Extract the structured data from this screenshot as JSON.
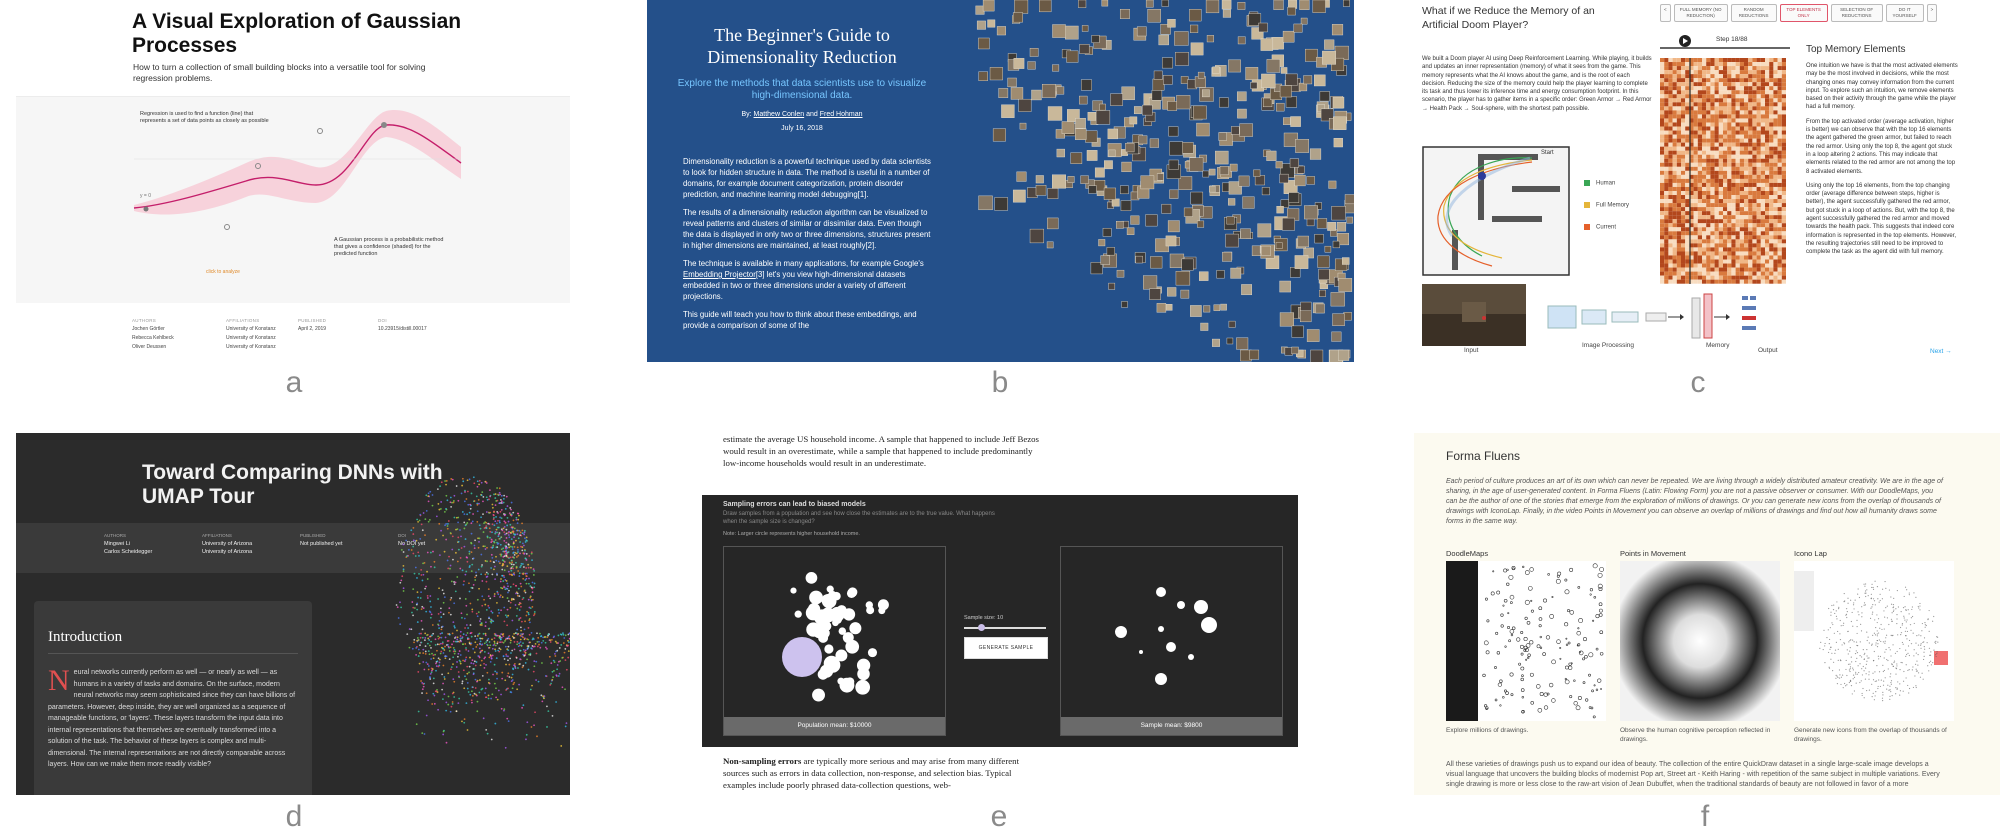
{
  "panel_labels": [
    "a",
    "b",
    "c",
    "d",
    "e",
    "f"
  ],
  "a": {
    "title": "A Visual Exploration of Gaussian Processes",
    "subtitle": "How to turn a collection of small building blocks into a versatile tool for solving regression problems.",
    "regression_note": "Regression is used to find a function (line) that represents a set of data points as closely as possible",
    "gp_note": "A Gaussian process is a probabilistic method that gives a confidence (shaded) for the predicted function",
    "y_label": "y = 0",
    "click_hint": "click to analyze",
    "meta": {
      "authors_h": "AUTHORS",
      "authors": [
        "Jochen Görtler",
        "Rebecca Kehlbeck",
        "Oliver Deussen"
      ],
      "affil_h": "AFFILIATIONS",
      "affil": [
        "University of Konstanz",
        "University of Konstanz",
        "University of Konstanz"
      ],
      "pub_h": "PUBLISHED",
      "pub": "April 2, 2019",
      "doi_h": "DOI",
      "doi": "10.23915/distill.00017"
    }
  },
  "b": {
    "title": "The Beginner's Guide to Dimensionality Reduction",
    "subtitle": "Explore the methods that data scientists use to visualize high-dimensional data.",
    "by_prefix": "By: ",
    "author1": "Matthew Conlen",
    "and": " and ",
    "author2": "Fred Hohman",
    "date": "July 16, 2018",
    "p1": "Dimensionality reduction is a powerful technique used by data scientists to look for hidden structure in data. The method is useful in a number of domains, for example document categorization, protein disorder prediction, and machine learning model debugging[1].",
    "p2": "The results of a dimensionality reduction algorithm can be visualized to reveal patterns and clusters of similar or dissimilar data. Even though the data is displayed in only two or three dimensions, structures present in higher dimensions are maintained, at least roughly[2].",
    "p3_a": "The technique is available in many applications, for example Google's ",
    "p3_link": "Embedding Projector",
    "p3_b": "[3] let's you view high-dimensional datasets embedded in two or three dimensions under a variety of different projections.",
    "p4": "This guide will teach you how to think about these embeddings, and provide a comparison of some of the"
  },
  "c": {
    "title": "What if we Reduce the Memory of an Artificial Doom Player?",
    "buttons": [
      "<",
      "FULL MEMORY (NO REDUCTION)",
      "RANDOM REDUCTIONS",
      "TOP ELEMENTS ONLY",
      "SELECTION OF REDUCTIONS",
      "DO IT YOURSELF",
      ">"
    ],
    "active_button": 3,
    "intro": "We built a Doom player AI using Deep Reinforcement Learning. While playing, it builds and updates an inner representation (memory) of what it sees from the game. This memory represents what the AI knows about the game, and is the root of each decision. Reducing the size of the memory could help the player learning to complete its task and thus lower its inference time and energy consumption footprint. In this scenario, the player has to gather items in a specific order: Green Armor → Red Armor → Health Pack → Soul-sphere, with the shortest path possible.",
    "step": "Step 18/88",
    "right_title": "Top Memory Elements",
    "r1": "One intuition we have is that the most activated elements may be the most involved in decisions, while the most changing ones may convey information from the current input. To explore such an intuition, we remove elements based on their activity through the game while the player had a full memory.",
    "r2": "From the top activated order (average activation, higher is better) we can observe that with the top 16 elements the agent gathered the green armor, but failed to reach the red armor. Using only the top 8, the agent got stuck in a loop altering 2 actions. This may indicate that elements related to the red armor are not among the top 8 activated elements.",
    "r3": "Using only the top 16 elements, from the top changing order (average difference between steps, higher is better), the agent successfully gathered the red armor, but got stuck in a loop of actions. But, with the top 8, the agent successfully gathered the red armor and moved towards the health pack. This suggests that indeed core information is represented in the top elements. However, the resulting trajectories still need to be improved to complete the task as the agent did with full memory.",
    "legend": [
      {
        "label": "Human",
        "color": "#3aa655"
      },
      {
        "label": "Full Memory",
        "color": "#e5b53a"
      },
      {
        "label": "Current",
        "color": "#e5602a"
      }
    ],
    "start": "Start",
    "captions": {
      "input": "Input",
      "processing": "Image Processing",
      "memory": "Memory",
      "output": "Output"
    },
    "next": "Next →"
  },
  "d": {
    "title": "Toward Comparing DNNs with UMAP Tour",
    "meta": {
      "authors_h": "AUTHORS",
      "authors": [
        "Mingwei Li",
        "Carlos Scheidegger"
      ],
      "affil_h": "AFFILIATIONS",
      "affil": [
        "University of Arizona",
        "University of Arizona"
      ],
      "pub_h": "PUBLISHED",
      "pub": "Not published yet",
      "doi_h": "DOI",
      "doi": "No DOI yet"
    },
    "intro_title": "Introduction",
    "drop": "N",
    "intro_body": "eural networks currently perform as well — or nearly as well — as humans in a variety of tasks and domains. On the surface, modern neural networks may seem sophisticated since they can have billions of parameters. However, deep inside, they are well organized as a sequence of manageable functions, or 'layers'. These layers transform the input data into internal representations that themselves are eventually transformed into a solution of the task. The behavior of these layers is complex and multi-dimensional. The internal representations are not directly comparable across layers. How can we make them more readily visible?"
  },
  "e": {
    "p_top": "estimate the average US household income. A sample that happened to include Jeff Bezos would result in an overestimate, while a sample that happened to include predominantly low-income households would result in an underestimate.",
    "heading": "Sampling errors can lead to biased models",
    "sub": "Draw samples from a population and see how close the estimates are to the true value. What happens when the sample size is changed?",
    "note": "Note: Larger circle represents higher household income.",
    "pop_mean": "Population mean: $10000",
    "sample_size": "Sample size: 10",
    "generate": "GENERATE SAMPLE",
    "sample_mean": "Sample mean: $9800",
    "p_bot_bold": "Non-sampling errors",
    "p_bot": " are typically more serious and may arise from many different sources such as errors in data collection, non-response, and selection bias. Typical examples include poorly phrased data-collection questions, web-"
  },
  "f": {
    "title": "Forma Fluens",
    "intro": "Each period of culture produces an art of its own which can never be repeated. We are living through a widely distributed amateur creativity. We are in the age of sharing, in the age of user-generated content. In Forma Fluens (Latin: Flowing Form) you are not a passive observer or consumer. With our DoodleMaps, you can be the author of one of the stories that emerge from the exploration of millions of drawings. Or you can generate new icons from the overlap of thousands of drawings with IconoLap. Finally, in the video Points in Movement you can observe an overlap of millions of drawings and find out how all humanity draws some forms in the same way.",
    "cols": [
      {
        "h": "DoodleMaps",
        "cap": "Explore millions of drawings."
      },
      {
        "h": "Points in Movement",
        "cap": "Observe the human cognitive perception reflected in drawings."
      },
      {
        "h": "Icono Lap",
        "cap": "Generate new icons from the overlap of thousands of drawings."
      }
    ],
    "foot": "All these varieties of drawings push us to expand our idea of beauty. The collection of the entire QuickDraw dataset in a single large-scale image develops a visual language that uncovers the building blocks of modernist Pop art, Street art - Keith Haring - with repetition of the same subject in multiple variations. Every single drawing is more or less close to the raw-art vision of Jean Dubuffet, when the traditional standards of beauty are not followed in favor of a more"
  }
}
